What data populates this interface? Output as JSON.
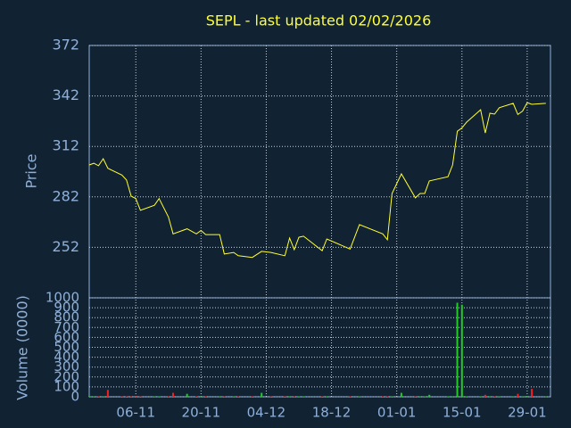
{
  "chart_data": {
    "type": "line",
    "title": "SEPL - last updated 02/02/2026",
    "ylabel": "Price",
    "volume_label": "Volume (0000)",
    "x": [
      "27-10",
      "28-10",
      "29-10",
      "30-10",
      "31-10",
      "03-11",
      "04-11",
      "05-11",
      "06-11",
      "07-11",
      "10-11",
      "11-11",
      "13-11",
      "14-11",
      "17-11",
      "19-11",
      "20-11",
      "21-11",
      "24-11",
      "25-11",
      "27-11",
      "28-11",
      "01-12",
      "03-12",
      "05-12",
      "08-12",
      "09-12",
      "10-12",
      "11-12",
      "12-12",
      "16-12",
      "17-12",
      "22-12",
      "24-12",
      "29-12",
      "30-12",
      "31-12",
      "02-01",
      "05-01",
      "06-01",
      "07-01",
      "08-01",
      "12-01",
      "13-01",
      "14-01",
      "15-01",
      "16-01",
      "19-01",
      "20-01",
      "21-01",
      "22-01",
      "23-01",
      "26-01",
      "27-01",
      "28-01",
      "29-01",
      "30-01",
      "02-02"
    ],
    "values": [
      301,
      302,
      300.5,
      304.7,
      299,
      295,
      292,
      282.4,
      281,
      274,
      277,
      281,
      270,
      260,
      263,
      260,
      262,
      259.6,
      259.6,
      248,
      249,
      247,
      246,
      249.6,
      249,
      247,
      257.5,
      250.6,
      258,
      258.6,
      250,
      257,
      251,
      265.5,
      260,
      256.5,
      284,
      295.7,
      281.4,
      284,
      284,
      291.5,
      294,
      301,
      321,
      323,
      326.4,
      333.8,
      320,
      331.7,
      331.2,
      335,
      337.6,
      331,
      333,
      338,
      337,
      337.6
    ],
    "volume": [
      5,
      5,
      5,
      5,
      70,
      5,
      5,
      5,
      5,
      5,
      5,
      5,
      5,
      40,
      30,
      5,
      5,
      5,
      5,
      5,
      5,
      5,
      5,
      40,
      5,
      5,
      5,
      5,
      5,
      5,
      5,
      5,
      5,
      5,
      5,
      5,
      5,
      40,
      5,
      5,
      5,
      20,
      5,
      5,
      950,
      930,
      5,
      5,
      20,
      5,
      5,
      5,
      5,
      30,
      5,
      5,
      80,
      5
    ],
    "xlim": [
      "27-10",
      "03-02"
    ],
    "xticks": [
      "06-11",
      "20-11",
      "04-12",
      "18-12",
      "01-01",
      "15-01",
      "29-01"
    ],
    "ylim": [
      222,
      372
    ],
    "yticks": [
      252,
      282,
      312,
      342,
      372
    ],
    "volume_ylim": [
      0,
      1000
    ],
    "volume_ticks": [
      0,
      100,
      200,
      300,
      400,
      500,
      600,
      700,
      800,
      900,
      1000
    ],
    "color": "#ffff33",
    "up_color": "#22cc22",
    "down_color": "#ee2222",
    "grid": true
  }
}
